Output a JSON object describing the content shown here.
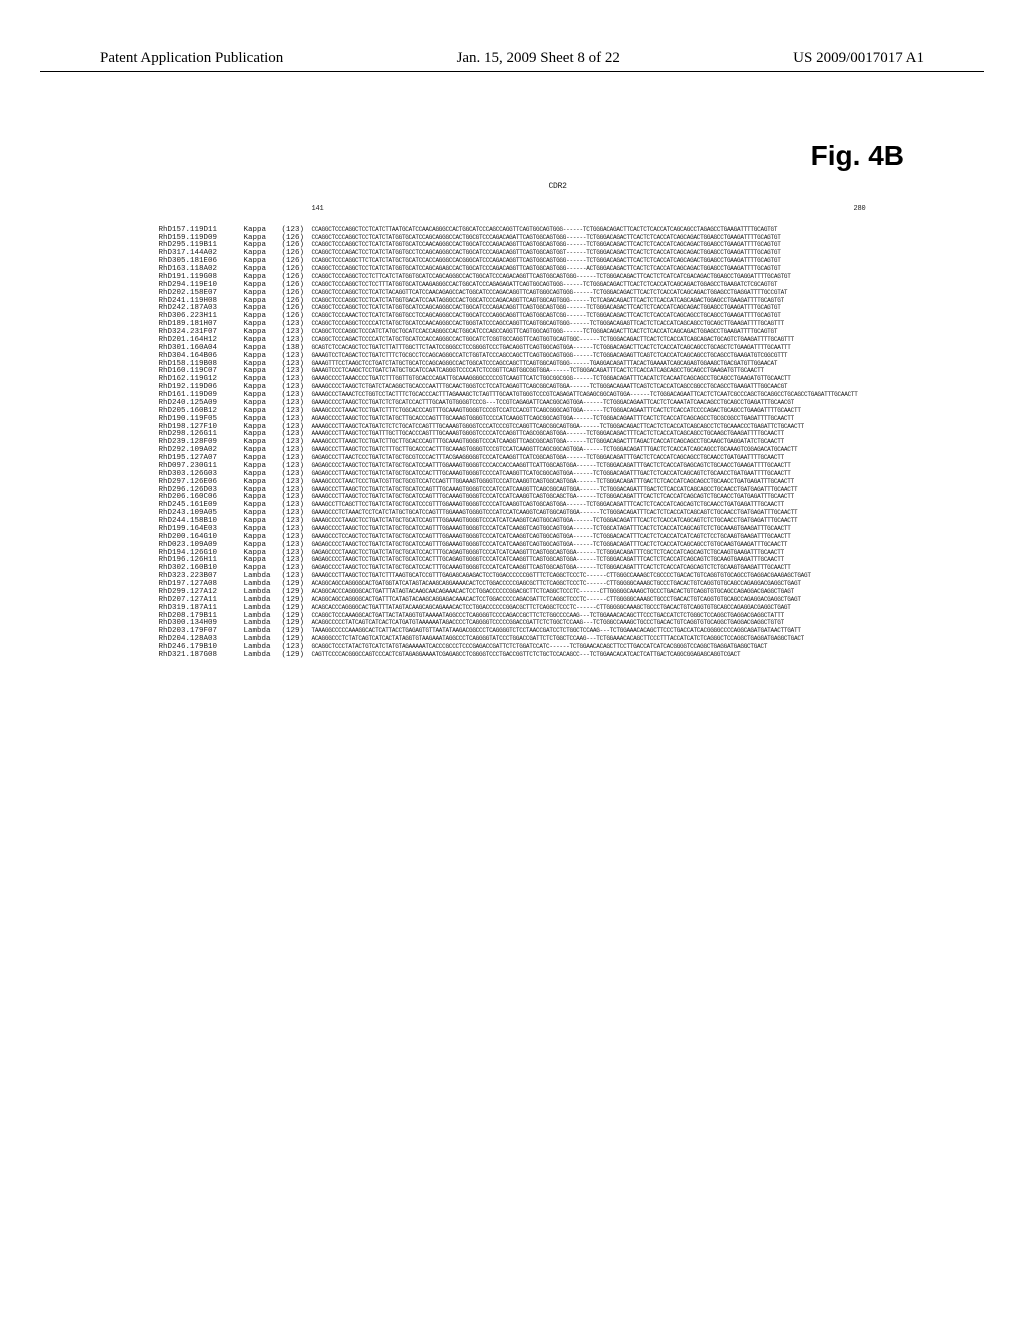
{
  "header": {
    "left": "Patent Application Publication",
    "center": "Jan. 15, 2009  Sheet 8 of 22",
    "right": "US 2009/0017017 A1"
  },
  "figure": {
    "title": "Fig. 4B",
    "cdr_label": "CDR2",
    "ruler_start": "141",
    "ruler_end": "280"
  },
  "alignment": {
    "font_family": "Courier",
    "label_fontsize": 7.5,
    "seq_fontsize": 6,
    "text_color": "#1a1a1a",
    "background_color": "#ffffff",
    "entries": [
      {
        "id": "RhD157.119D11",
        "chain": "Kappa",
        "pos": "(123)",
        "seq": "CCAGGCTCCCAGGCTCCTCATCTTAATGCATCCAACAGGGCCACTGGCATCCCAGCCAGGTTCAGTGGCAGTGGG------TCTGGGACAGACTTCACTCTCACCATCAGCAGCCTAGAGCCTGAAGATTTTGCAGTGT"
      },
      {
        "id": "RhD159.119D09",
        "chain": "Kappa",
        "pos": "(126)",
        "seq": "CCAGGCTCCCAGGCTCCTCATCTATGGTGCATCCAGCAGGGCCACTGGCGTCCCAGACAGATTCAGTGGCAGTGGG------TCTGGGACAGACTTCACTCTCACCATCAGCAGACTGGAGCCTGAAGATTTTGCAGTGT"
      },
      {
        "id": "RhD295.119B11",
        "chain": "Kappa",
        "pos": "(126)",
        "seq": "CCAGGCTCCCAGGCTCCTCATCTATGGTGCATCCAACAGGGCCACTGGCATCCCAGACAGGTTCAGTGGCAGTGGG------TCTGGGACAGACTTCACTCTCACCATCAGCAGACTGGAGCCTGAAGATTTTGCAGTGT"
      },
      {
        "id": "RhD317.144A02",
        "chain": "Kappa",
        "pos": "(126)",
        "seq": "CCAGGCTCCCAGACTCCTCATCTATGGTGCCTCCAGCAGGGCCACTGGCATCCCAGACAGGTTCAGTGGCAGTGGT------TCTGGGACAGACTTCACTCTCACCATCAGCAGACTGGAGCCTGAAGATTTTGCAGTGT"
      },
      {
        "id": "RhD305.181E06",
        "chain": "Kappa",
        "pos": "(126)",
        "seq": "CCAGGCTCCCAGGCTTCTCATCTATGCTGCATCCACCAGGGCCACGGGCATCCCAGACAGGTTCAGTGGCAGTGGG------TCTGGGACAGACTTCACTCTCACCATCAGCAGACTGGAGCCTGAAGATTTTGCAGTGT"
      },
      {
        "id": "RhD163.118A02",
        "chain": "Kappa",
        "pos": "(126)",
        "seq": "CCAGGCTCCCAGGCTCCTCATCTATGGTGCATCCAGCAGAGCCACTGGCATCCCAGACAGGTTCAGTGGCAGTGGG------ACTGGGACAGACTTCACTCTCACCATCAGCAGACTGGAGCCTGAAGATTTTGCAGTGT"
      },
      {
        "id": "RhD191.119G08",
        "chain": "Kappa",
        "pos": "(126)",
        "seq": "CCAGGCTCCCAGGCTCCTCTTCATCTATGGTGCATCCAGCAGGGCCACTGGCATCCCAGACAGGTTCAGTGGCAGTGGG------TCTGGGACAGACTTCACTCTCATCATCGACAGACTGGAGCCTGAGGATTTTGCAGTGT"
      },
      {
        "id": "RhD294.119E10",
        "chain": "Kappa",
        "pos": "(126)",
        "seq": "CCAGGCTCCCAGGCTCCTCCTTTATGGTGCATCAAGAGGGCCACTGGCATCCCAGAGAGATTCAGTGGCAGTGGG------TCTGGGACAGACTTCACTCTCACCATCAGCAGACTGGAGCCTGAAGATCTCGCAGTGT"
      },
      {
        "id": "RhD202.158E07",
        "chain": "Kappa",
        "pos": "(126)",
        "seq": "CCAGGCTCCCAGGCTCCTCATCTACAGGTTCATCCAACAGAGCCACTGGCATCCCAGACAGGTTCAGTGGGCAGTGGG------TCTGGGACAGACTTCACTCTCACCATCAGCAGACTGGAGCCTGAGGATTTTGCCGTAT"
      },
      {
        "id": "RhD241.119H08",
        "chain": "Kappa",
        "pos": "(126)",
        "seq": "CCAGGCTCCCAGGCTCCTCATCTATGGTGACATCCAATAGGGCCACTGGCATCCCAGACAGGTTCAGTGGCAGTGGG------TCTCAGACAGACTTCACTCTCACCATCAGCAGACTGGAGCCTGAAGATTTTGCAGTGT"
      },
      {
        "id": "RhD242.187A03",
        "chain": "Kappa",
        "pos": "(126)",
        "seq": "CCAGGCTCCCAGGCTCCTCATCTATGGTGCATCCAGCAGGGCCACTGGCATCCCAGACAGGTTCAGTGGCAGTGGG------TCTGGGACAGACTTCACTCTCACCATCAGCAGACTGGAGCCTGAAGATTTTGCAGTGT"
      },
      {
        "id": "RhD306.223H11",
        "chain": "Kappa",
        "pos": "(126)",
        "seq": "CCAGGCTCCCAAACTCCTCATCTATGGTGCCTCCAGCAGGGCCACTGGCATCCCAGGCAGGTTCAGTGGCAGTCGG------TCTGGGACAGACTTCACTCTCACCATCAGCAGCCTGCAGCCTGAAGATTTTGCAGTGT"
      },
      {
        "id": "RhD189.181H07",
        "chain": "Kappa",
        "pos": "(123)",
        "seq": "CCAGGCTCCCAGGCTCCCCATCTATGCTGCATCCAACAGGGCCACTGGGTATCCCAGCCAGGTTCAGTGGCAGTGGG------TCTGGGACAGAGTTCACTCTCACCATCAGCAGCCTGCAGCTTGAAGATTTTGCAGTTT"
      },
      {
        "id": "RhD324.231F07",
        "chain": "Kappa",
        "pos": "(123)",
        "seq": "CCAGGCTCCCAGGCTCCCATCTATGCTGCATCCACCAGGGCCACTGGCATCCCAGCCAGGTTCAGTGGCAGTGGG------TCTGGGACAGACTTCACTCTCACCATCAGCAGACTGGAGCCTGAAGATTTTGCAGTGT"
      },
      {
        "id": "RhD201.164H12",
        "chain": "Kappa",
        "pos": "(123)",
        "seq": "CCAGGCTCCCAGACTCCCCATCTATGCTGCATCCACCAGGGCCACTGGCATCTCGGTGCCAGGTTCAGTGGTGCAGTGGC------TCTGGGACAGACTTCACTCTCACCATCAGCAGACTGCAGTCTGAAGATTTTGCAGTTT"
      },
      {
        "id": "RhD301.160A04",
        "chain": "Kappa",
        "pos": "(138)",
        "seq": "GCAGTCTCCACAGCTCCTGATCTTATTTGGCTTCTAATCCGGGCCTCCGGGGTCCCTGACAGGTTCAGTGGCAGTGGA------TCTGGGACAGACTTCACTCTCACCATCAGCAGCCTGCAGCTCTGAAGATTTTGCAATTT"
      },
      {
        "id": "RhD304.164B06",
        "chain": "Kappa",
        "pos": "(123)",
        "seq": "GAAAGTCCTCAGACTCCTGATCTTTCTGCGCCTCCAGCAGGGCCATCTGGTATCCCAGCCAGCTTCAGTGGCAGTGGG------TCTGGGACAGAGTTCAGTCTCACCATCAGCAGCCTGCAGCCTGAAGATGTCGGCGTTT"
      },
      {
        "id": "RhD158.119B08",
        "chain": "Kappa",
        "pos": "(123)",
        "seq": "GAAAGTTTCCTAAGCTCCTGATCTATGCTGCATCCAGCAGGGCCACTGGCATCCCAGCCAGCTTCAGTGGCAGTGGG------TGAGGACAGATTTACACTGAAAATCAGCAGAGTGGAAGCTGACGATGTTGGAACAT"
      },
      {
        "id": "RhD160.119C07",
        "chain": "Kappa",
        "pos": "(123)",
        "seq": "GAAAGTCCCTCAAGCTCCTGATCTATGCTGCATCCAATCAGGGTCCCCATCTCCGGTTCAGTGGCGGTGGA------TCTGGGACAGATTTCACTCTCACCATCAGCAGCCTGCAGCCTGAAGATGTTGCAACTT"
      },
      {
        "id": "RhD162.119G12",
        "chain": "Kappa",
        "pos": "(123)",
        "seq": "GAAAGCCCCTAAACCCCTGATCTTTGGTTGTGCACCCAGATTGCAAAGGGGCCCCCGTCAAGTTCATCTGGCGGCGGG------TCTGGGACAGATTTCACATCTCACAATCAGCAGCCTGCAGCCTGAAGATGTTGCAACTT"
      },
      {
        "id": "RhD192.119D06",
        "chain": "Kappa",
        "pos": "(123)",
        "seq": "GAAAGCCCCTAAGCTCTGATCTACAGGCTGCACCCAATTTGCAACTGGGTCCTCCATCAGAGTTCAGCGGCAGTGGA------TCTGGGACAGAATTCAGTCTCACCATCAGCCGGCCTGCAGCCTGAAGATTTGGCAACGT"
      },
      {
        "id": "RhD161.119D09",
        "chain": "Kappa",
        "pos": "(123)",
        "seq": "GAAAGCCCTAAACTCCTGGTCCTACTTTCTGCACCCACTTTAGAAAGCTCTAGTTTGCAATGTGGGTCCCGTCAGAGATTCAGAGCGGCAGTGGA------TCTGGGACAGAATTCACTCTCAATCGCCCAGCTGCAGGCCTGCAGCCTGAGATTTGCAACTT"
      },
      {
        "id": "RhD240.125A09",
        "chain": "Kappa",
        "pos": "(123)",
        "seq": "GAAAGCCCCTAAGCTCCTGATCTCTGCATCCACTTTGCAATGTGGGGTCCCG---TCCGTCAGAGATTCAACGGCAGTGGA------TCTGGGACAGAATTCACTCTCAAATATCAACAGCCTGCAGCCTGAGATTTGCAACGT"
      },
      {
        "id": "RhD205.160B12",
        "chain": "Kappa",
        "pos": "(123)",
        "seq": "GAAAGCCCCTAAACTCCTGATCTTTCTGGCACCCAGTTTGCAAAGTGGGGTCCCGTCCATCCACGTTCAGCGGGCAGTGGA------TCTGGGACAGAATTTCACTCTCACCATCCCCAGACTGCAGCCTGAAGATTTTGCAACTT"
      },
      {
        "id": "RhD190.119F05",
        "chain": "Kappa",
        "pos": "(123)",
        "seq": "AGAAGCCCCTAAGCTCCTGATCTATGCTTGCACCCAGTTTGCAAAGTGGGGTCCCCATCAAGGTTCAGCGGCAGTGGA------TCTGGGACAGAATTTCACTCTCACCATCAGCAGCCTGCGCGGCCTGAGATTTTGCAACTT"
      },
      {
        "id": "RhD198.127F10",
        "chain": "Kappa",
        "pos": "(123)",
        "seq": "AAAAGCCCTTAAGCTCATGATCTCTCTGCATCCAGTTTGCAAAGTGGGGTCCCATCCCGTCCAGGTTCAGCGGCAGTGGA------TCTGGGACAGACTTCACTCTCACCATCAGCAGCCTCTGCAAACCCTGAGATTCTGCAACTT"
      },
      {
        "id": "RhD298.126G11",
        "chain": "Kappa",
        "pos": "(123)",
        "seq": "AAAAGCCCTTAAGCTCCTGATTTGCTTGCACCCAGTTTGCAAAGTGGGGTCCCCATCCAGGTTCAGCGGCAGTGGA------TCTGGGACAGACTTTCACTCTCACCATCAGCAGCCTGCAAGCTGAAGATTTTGCAACTT"
      },
      {
        "id": "RhD239.128F09",
        "chain": "Kappa",
        "pos": "(123)",
        "seq": "AAAAGCCCTTAAGCTCCTGATCTTGCTTGCACCCAGTTTGCAAAGTGGGGTCCCATCAAGGTTCAGCGGCAGTGGA------TCTGGGACAGACTTTAGACTCACCATCAGCAGCCTGCAAGCTGAGGATATCTGCAACTT"
      },
      {
        "id": "RhD292.109A02",
        "chain": "Kappa",
        "pos": "(123)",
        "seq": "GAAAGCCCTTAAGCTCCTGATCTTTGCTTGCACCCACTTTGCAAAGTGGGGTCCCGTCCATCAAGGTTCAGCGGCAGTGGA------TCTGGGACAGATTTGACTCTCACCATCAGCAGCCTGCAAAGTCGGAGACATGCAACTT"
      },
      {
        "id": "RhD195.127A07",
        "chain": "Kappa",
        "pos": "(123)",
        "seq": "GAGAGCCCTTAACTCCCTGATCTATGCTGCGTCCCACTTTACGAAGGGGGTCCCATCAAGGTTCATCGGCAGTGGA------TCTGGGACAGATTTGACTCTCACCATCAGCAGCCTGCAACCTGATGAATTTTGCAACTT"
      },
      {
        "id": "RhD097.230G11",
        "chain": "Kappa",
        "pos": "(123)",
        "seq": "GAGAGCCCCTAAGCTCCTGATCTATGCTGCATCCAATTTGGAAAGTGGGGTCCCACCACCAAGGTTCATTGGCAGTGGA------TCTGGGACAGATTTGACTCTCACCATGAGCAGTCTGCAACCTGAAGATTTTGCAACTT"
      },
      {
        "id": "RhD303.126G03",
        "chain": "Kappa",
        "pos": "(123)",
        "seq": "GAGAGCCCTTAAGCTCCTGATCTATGCTGCATCCACTTTGCAAAGTGGGGTCCCCATCAAGGTTCATGCGGCAGTGGA------TCTGGGACAGATTTGACTCTCACCATCAGCAGTCTGCAACCTGATGAATTTTGCAACTT"
      },
      {
        "id": "RhD297.126E06",
        "chain": "Kappa",
        "pos": "(123)",
        "seq": "GAAAGCCCCTAACTCCCTGATCGTTGCTGCGTCCATCCAGTTTGGAAAGTGGGGTCCCATCAAGGTCAGTGGCAGTGGA------TCTGGGACAGATTTGACTCTCACCATCAGCAGCCTGCAACCTGATGAGATTTGCAACTT"
      },
      {
        "id": "RhD296.126D03",
        "chain": "Kappa",
        "pos": "(123)",
        "seq": "GAAAGCCCTTAAGCTCCTGATCTATGCTGCATCCAGTTTGCAAAGTGGGGTCCCATCCATCAAGGTTCAGCGGCAGTGGA------TCTGGGACAGATTTGACTCTCACCATCAGCAGCCTGCAACCTGATGAGATTTGCAACTT"
      },
      {
        "id": "RhD206.160C06",
        "chain": "Kappa",
        "pos": "(123)",
        "seq": "GAAAGCCCTTAAGCTCCTGATCTATGCTGCATCCAGTTTGCAAAGTGGGGTCCCATCCATCAAGGTCAGTGGCAGCTGA------TCTGGGACAGATTTCACTCTCACCATCAGCAGTCTGCAACCTGATGAGATTTGCAACTT"
      },
      {
        "id": "RhD245.161E09",
        "chain": "Kappa",
        "pos": "(123)",
        "seq": "GAAAGCCTTCAGCTTCCTGATCTATGCTGCATCCCGTTTGGAAAGTGGGGTCCCCATCAAGGTCAGTGGCAGTGGA------TCTGGGACAGATTTCACTCTCACCATCAGCAGTCTGCAACCTGATGAGATTTGCAACTT"
      },
      {
        "id": "RhD243.109A05",
        "chain": "Kappa",
        "pos": "(123)",
        "seq": "GAAAGCCCTCTAAACTCCTCATCTATGCTGCATCCAGTTTGGAAAGTGGGGTCCCATCCATCAAGGTCAGTGGCAGTGGA------TCTGGGACAGATTTCACTCTCACCATCAGCAGTCTGCAACCTGATGAGATTTGCAACTT"
      },
      {
        "id": "RhD244.158B10",
        "chain": "Kappa",
        "pos": "(123)",
        "seq": "GAAAGCCCCTAAGCTCCTGATCTATGCTGCATCCAGTTTGGAAAGTGGGGTCCCATCATCAAGGTCAGTGGCAGTGGA------TCTGGGACAGATTTCACTCTCACCATCAGCAGTCTCTGCAACCTGATGAGATTTGCAACTT"
      },
      {
        "id": "RhD199.164E03",
        "chain": "Kappa",
        "pos": "(123)",
        "seq": "GAAAGCCCCTAAGCTCCTGATCTATGCTGCATCCAGTTTGGAAAGTGGGGTCCCATCATCAAGGTCAGTGGCAGTGGA------TCTGGCATAGATTTCACTCTCACCATCAGCAGTCTCTGCAAAGTGAAGATTTGCAACTT"
      },
      {
        "id": "RhD200.164G10",
        "chain": "Kappa",
        "pos": "(123)",
        "seq": "GAAAGCCCTCCAGCTCCTGATCTATGCTGCATCCAGTTTGGAAAGTGGGGTCCCATCATCAAGGTCAGTGGCAGTGGA------TCTGGGACACATTTCACTCTCACCATCATCAGTCTCCTGCAAGTGAAGATTTGCAACTT"
      },
      {
        "id": "RhD023.109A09",
        "chain": "Kappa",
        "pos": "(123)",
        "seq": "GAGAGCCCCTAAGCTCCTGATCTATGCTGCATCCAGTTTGGAAAGTGGGGTCCCATCATCAAGGTCAGTGGCAGTGGA------TCTGGGACAGATTTCACTCTCACCATCAGCAGCCTGTGCAAGTGAAGATTTGCAACTT"
      },
      {
        "id": "RhD194.126G10",
        "chain": "Kappa",
        "pos": "(123)",
        "seq": "GAGAGCCCCTAAGCTCCTGATCTATGCTGCATCCACTTTGCAGAGTGGGGTCCCATCATCAAGGTTCAGTGGCAGTGGA------TCTGGGACAGATTTCGCTCTCACCATCAGCAGTCTGCAAGTGAAGATTTGCAACTT"
      },
      {
        "id": "RhD196.126H11",
        "chain": "Kappa",
        "pos": "(123)",
        "seq": "GAGAGCCCCTAAGCTCCTGATCTATGCTGCATCCACTTTGCAGAGTGGGGTCCCATCATCAAGGTTCAGTGGCAGTGGA------TCTGGGACAGATTTCACTCTCACCATCAGCAGTCTGCAAGTGAAGATTTGCAACTT"
      },
      {
        "id": "RhD302.160B10",
        "chain": "Kappa",
        "pos": "(123)",
        "seq": "GAGAGCCCCTAAGCTCCTGATCTATGCTGCATCCACTTTGCAAAGTGGGGTCCCATCATCAAGGTTCAGTGGCAGTGGA------TCTGGGACAGATTTCACTCTCACCATCAGCAGTCTCTGCAAGTGAAGATTTGCAACTT"
      },
      {
        "id": "RhD323.223B07",
        "chain": "Lambda",
        "pos": "(123)",
        "seq": "GAAAGCCCTTAAGCTCCTGATCTTTAAGTGCATCCGTTTGAGAGCAGAGACTCCTGGACCCCCCGGTTTCTCAGGCTCCCTC------CTTGGGCCAAAGCTCGCCCCTGACACTGTCAGGTGTGCAGCCTGAGGACGAAGAGCTGAGT"
      },
      {
        "id": "RhD197.127A08",
        "chain": "Lambda",
        "pos": "(129)",
        "seq": "ACAGGCAGCCAGGGGCACTGATGGTATCATAGTACAAGCAGGAAAACACTCCTGGACCCCCGAGCGCTTCTCAGGCTCCCTC------CTTGGGGGCAAAGCTGCCCTGACACTGTCAGGTGTGCAGCCAGAGGACGAGGCTGAGT"
      },
      {
        "id": "RhD299.127A12",
        "chain": "Lambda",
        "pos": "(129)",
        "seq": "ACAGGCACCCAGGGGCACTGATTTATAGTACAAGCAACAGAAACACTCCTGGACCCCCCGGACGCTTCTCAGGCTCCCTC------CTTGGGGGCAAAGCTGCCCTGACACTGTCAGGTGTGCAGCCAGAGGACGAGGCTGAGT"
      },
      {
        "id": "RhD207.127A11",
        "chain": "Lambda",
        "pos": "(129)",
        "seq": "ACAGGCAGCCAGGGGCACTGATTTCATAGTACAAGCAGGAGACAAACACTCCTGGACCCCCAGACGATTCTCAGGCTCCCTC------CTTGGGGGCAAAGCTGCCCTGACACTGTCAGGTGTGCAGCCAGAGGACGAGGCTGAGT"
      },
      {
        "id": "RhD319.187A11",
        "chain": "Lambda",
        "pos": "(129)",
        "seq": "ACAGCACCCAGGGGCACTGATTTATAGTACAAGCAGCAGAAACACTCCTGGACCCCCCGGACGCTTCTCAGGCTCCCTC------CTTGGGGGCAAAGCTGCCCTGACACTGTCAGGTGTGCAGCCAGAGGACGAGGCTGAGT"
      },
      {
        "id": "RhD208.179B11",
        "chain": "Lambda",
        "pos": "(129)",
        "seq": "CCAGGCTCCCAAAGGCACTGATTACTATAGGTGTAAAAATAGGCCCTCAGGGGTCCCCAGACCGCTTCTCTGGCCCCAAG---TCTGGAAACACAGCTTCCCTGACCATCTCTGGGCTCCAGGCTGAGGACGAGGCTATTT"
      },
      {
        "id": "RhD300.134H09",
        "chain": "Lambda",
        "pos": "(129)",
        "seq": "ACAGGCCCCCTATCAGTCATCACTCATGATGTAAAAAATAGACCCCTCAGGGGTCCCCCGGACCGATTCTCTGGCTCCAAG---TCTGGGCCAAAGCTGCCCTGACACTGTCAGGTGTGCAGGCTGAGGACGAGGCTGTGT"
      },
      {
        "id": "RhD203.179F07",
        "chain": "Lambda",
        "pos": "(129)",
        "seq": "TAAAGGCCCCCAAAGGCACTCATTACCTGAGAGTGTTAATATAAGACGGCCCTCAGGGGTCTCCTAACCGATCCTCTGGCTCCAAG---TCTGGAAACACAGCTTCCCTGACCATCACGGGGCCCCAGGCAGATGATAACTTGATT"
      },
      {
        "id": "RhD204.128A03",
        "chain": "Lambda",
        "pos": "(129)",
        "seq": "ACAGGGCCCTCTATCAGTCATCACTATAGGTGTAAGAAATAGGCCCTCAGGGGTATCCCTGGACCGATTCTCTGGCTCCAAG---TCTGGAAACACAGCTTCCCTTTACCATCATCTCAGGGCTCCAGGCTGAGGATGAGGCTGACT"
      },
      {
        "id": "RhD246.179B10",
        "chain": "Lambda",
        "pos": "(123)",
        "seq": "GCAGGCTCCCTATACTGTCATCTATGTAGAAAAATCACCCGCCCTCCCGAGACCGATTCTCTGGATCCATC------TCTGGAACACAGCTTCCTTGACCATCATCACGGGGTCCAGGCTGAGGATGAGGCTGACT"
      },
      {
        "id": "RhD321.187G08",
        "chain": "Lambda",
        "pos": "(129)",
        "seq": "CAGTTCCCCACGGGCCAGTCCCACTCGTAGAGGAAAATCGAGAGCCTCGGGGTCCCTGACCGGTTCTCTGCTCCACAGCC---TCTGGAACACATCACTCATTGACTCAGGCGGAGAGCAGGTCGACT"
      }
    ]
  }
}
